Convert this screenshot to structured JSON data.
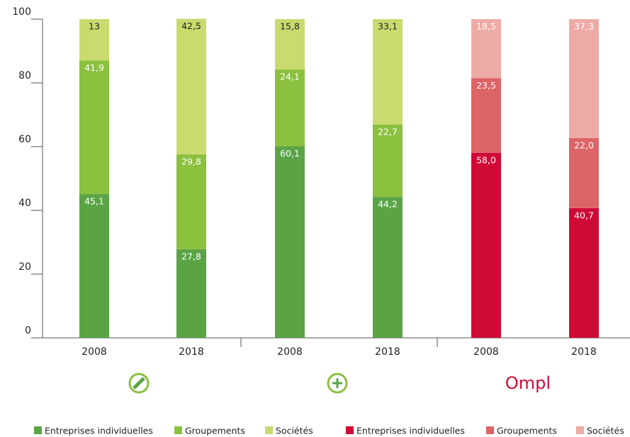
{
  "chart_data": {
    "type": "stacked_bar",
    "categories": [
      "2008",
      "2018",
      "2008",
      "2018",
      "2008",
      "2018"
    ],
    "series": [
      {
        "name": "Entreprises individuelles",
        "colors": [
          "#5aa446",
          "#5aa446",
          "#5aa446",
          "#5aa446",
          "#d00a36",
          "#d00a36"
        ],
        "values": [
          45.1,
          27.8,
          60.1,
          44.2,
          58.0,
          40.7
        ],
        "value_labels": [
          "45,1",
          "27,8",
          "60,1",
          "44,2",
          "58,0",
          "40,7"
        ]
      },
      {
        "name": "Groupements",
        "colors": [
          "#8cc03f",
          "#8cc03f",
          "#8cc03f",
          "#8cc03f",
          "#dd6467",
          "#dd6467"
        ],
        "values": [
          41.9,
          29.8,
          24.1,
          22.7,
          23.5,
          22.0
        ],
        "value_labels": [
          "41,9",
          "29,8",
          "24,1",
          "22,7",
          "23,5",
          "22,0"
        ]
      },
      {
        "name": "Sociétés",
        "colors": [
          "#c9da6f",
          "#c9da6f",
          "#c9da6f",
          "#c9da6f",
          "#eeaba6",
          "#eeaba6"
        ],
        "values": [
          13,
          42.5,
          15.8,
          33.1,
          18.5,
          37.3
        ],
        "value_labels": [
          "13",
          "42,5",
          "15,8",
          "33,1",
          "18,5",
          "37,3"
        ]
      }
    ],
    "ylim": [
      0,
      100
    ],
    "yticks": [
      0,
      20,
      40,
      60,
      80,
      100
    ],
    "logo_text": "Ompl"
  }
}
